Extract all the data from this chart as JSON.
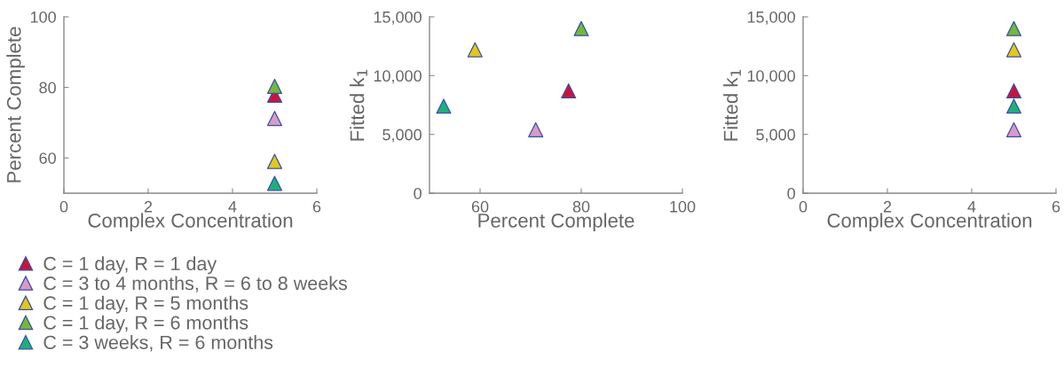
{
  "chart_data": [
    {
      "type": "scatter",
      "xlabel": "Complex Concentration",
      "ylabel": "Percent Complete",
      "xlim": [
        0,
        6
      ],
      "xticks": [
        0,
        2,
        4,
        6
      ],
      "ylim": [
        50,
        100
      ],
      "yticks": [
        60,
        80,
        100
      ],
      "marker": "triangle",
      "grid": false,
      "legend": "bottom",
      "series": [
        {
          "name": "C = 1 day, R = 1 day",
          "color": "#c8143c",
          "x": [
            5
          ],
          "values": [
            77.8
          ]
        },
        {
          "name": "C = 3 to 4 months, R = 6 to 8 weeks",
          "color": "#d99ac8",
          "x": [
            5
          ],
          "values": [
            71.2
          ]
        },
        {
          "name": "C = 1 day, R = 5 months",
          "color": "#e3c81a",
          "x": [
            5
          ],
          "values": [
            59
          ]
        },
        {
          "name": "C = 1 day, R = 6 months",
          "color": "#72b83a",
          "x": [
            5
          ],
          "values": [
            80.3
          ]
        },
        {
          "name": "C = 3 weeks, R = 6 months",
          "color": "#1fae7d",
          "x": [
            5
          ],
          "values": [
            52.8
          ]
        }
      ]
    },
    {
      "type": "scatter",
      "xlabel": "Percent Complete",
      "ylabel": "Fitted k$_{1}$",
      "xlim": [
        50,
        100
      ],
      "xticks": [
        60,
        80,
        100
      ],
      "ylim": [
        0,
        15000
      ],
      "yticks": [
        {
          "value": 0,
          "label": "0"
        },
        {
          "value": 5000,
          "label": "5,000"
        },
        {
          "value": 10000,
          "label": "10,000"
        },
        {
          "value": 15000,
          "label": "15,000"
        }
      ],
      "marker": "triangle",
      "grid": false,
      "series": [
        {
          "color": "#c8143c",
          "x": [
            77.5
          ],
          "values": [
            8700
          ]
        },
        {
          "color": "#d99ac8",
          "x": [
            71
          ],
          "values": [
            5400
          ]
        },
        {
          "color": "#e3c81a",
          "x": [
            59
          ],
          "values": [
            12200
          ]
        },
        {
          "color": "#72b83a",
          "x": [
            80
          ],
          "values": [
            14000
          ]
        },
        {
          "color": "#1fae7d",
          "x": [
            52.8
          ],
          "values": [
            7400
          ]
        }
      ]
    },
    {
      "type": "scatter",
      "xlabel": "Complex Concentration",
      "ylabel": "Fitted k$_{1}$",
      "xlim": [
        0,
        6
      ],
      "xticks": [
        0,
        2,
        4,
        6
      ],
      "ylim": [
        0,
        15000
      ],
      "yticks": [
        {
          "value": 0,
          "label": "0"
        },
        {
          "value": 5000,
          "label": "5,000"
        },
        {
          "value": 10000,
          "label": "10,000"
        },
        {
          "value": 15000,
          "label": "15,000"
        }
      ],
      "marker": "triangle",
      "grid": false,
      "series": [
        {
          "color": "#c8143c",
          "x": [
            5
          ],
          "values": [
            8700
          ]
        },
        {
          "color": "#d99ac8",
          "x": [
            5
          ],
          "values": [
            5400
          ]
        },
        {
          "color": "#e3c81a",
          "x": [
            5
          ],
          "values": [
            12200
          ]
        },
        {
          "color": "#72b83a",
          "x": [
            5
          ],
          "values": [
            14000
          ]
        },
        {
          "color": "#1fae7d",
          "x": [
            5
          ],
          "values": [
            7400
          ]
        }
      ]
    }
  ]
}
